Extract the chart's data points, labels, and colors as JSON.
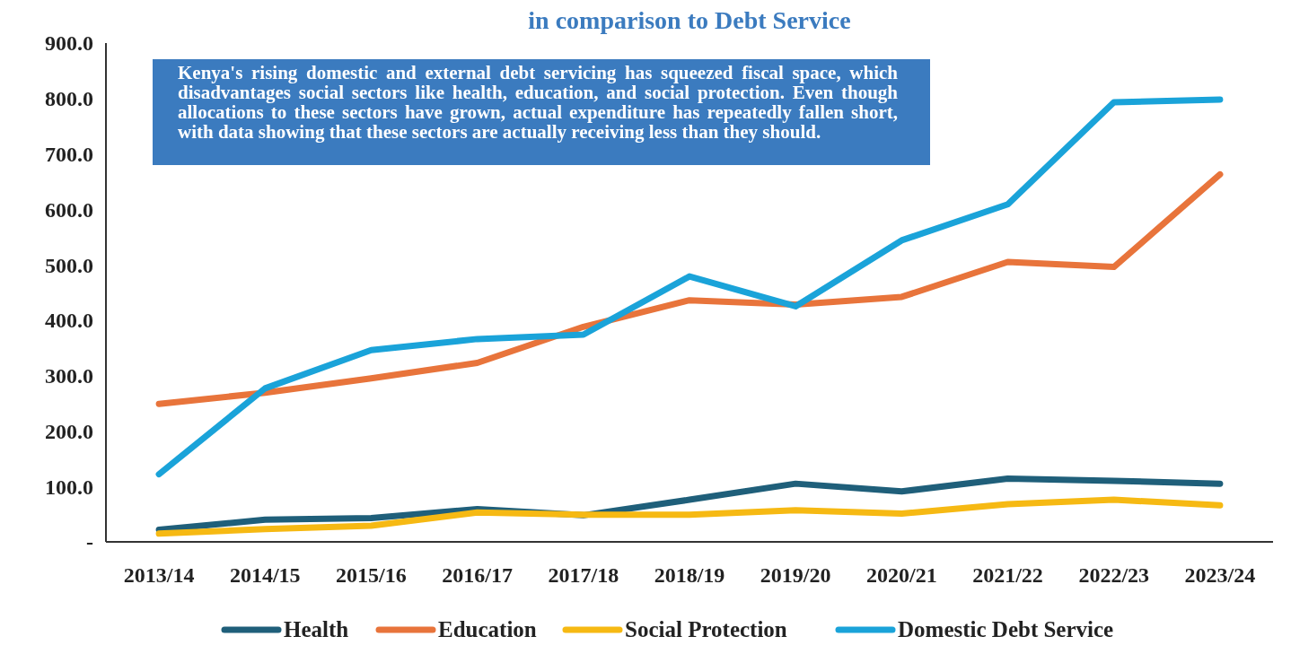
{
  "chart_data": {
    "type": "line",
    "title": "in comparison to Debt Service",
    "categories": [
      "2013/14",
      "2014/15",
      "2015/16",
      "2016/17",
      "2017/18",
      "2018/19",
      "2019/20",
      "2020/21",
      "2021/22",
      "2022/23",
      "2023/24"
    ],
    "series": [
      {
        "name": "Health",
        "color": "#1f5f7a",
        "values": [
          22,
          40,
          43,
          59,
          48,
          76,
          105,
          91,
          114,
          110,
          105
        ]
      },
      {
        "name": "Education",
        "color": "#e8743b",
        "values": [
          249,
          269,
          295,
          323,
          388,
          436,
          428,
          442,
          505,
          496,
          663
        ]
      },
      {
        "name": "Social Protection",
        "color": "#f6b913",
        "values": [
          15,
          23,
          29,
          53,
          49,
          49,
          57,
          51,
          68,
          76,
          66
        ]
      },
      {
        "name": "Domestic Debt Service",
        "color": "#1aa3d9",
        "values": [
          122,
          277,
          346,
          366,
          374,
          479,
          425,
          544,
          609,
          793,
          798
        ]
      }
    ],
    "ylim": [
      0,
      900
    ],
    "yticks": [
      {
        "value": 0,
        "label": "-"
      },
      {
        "value": 100,
        "label": "100.0"
      },
      {
        "value": 200,
        "label": "200.0"
      },
      {
        "value": 300,
        "label": "300.0"
      },
      {
        "value": 400,
        "label": "400.0"
      },
      {
        "value": 500,
        "label": "500.0"
      },
      {
        "value": 600,
        "label": "600.0"
      },
      {
        "value": 700,
        "label": "700.0"
      },
      {
        "value": 800,
        "label": "800.0"
      },
      {
        "value": 900,
        "label": "900.0"
      }
    ],
    "annotations": [
      "Kenya's rising domestic and external debt servicing has squeezed fiscal space, which disadvantages social sectors like health, education, and social protection. Even though allocations to these sectors have grown, actual expenditure has repeatedly fallen short, with data showing that these sectors are actually receiving less than they should."
    ],
    "legend": "bottom",
    "grid": false,
    "marker": "none",
    "line_style": "solid"
  }
}
